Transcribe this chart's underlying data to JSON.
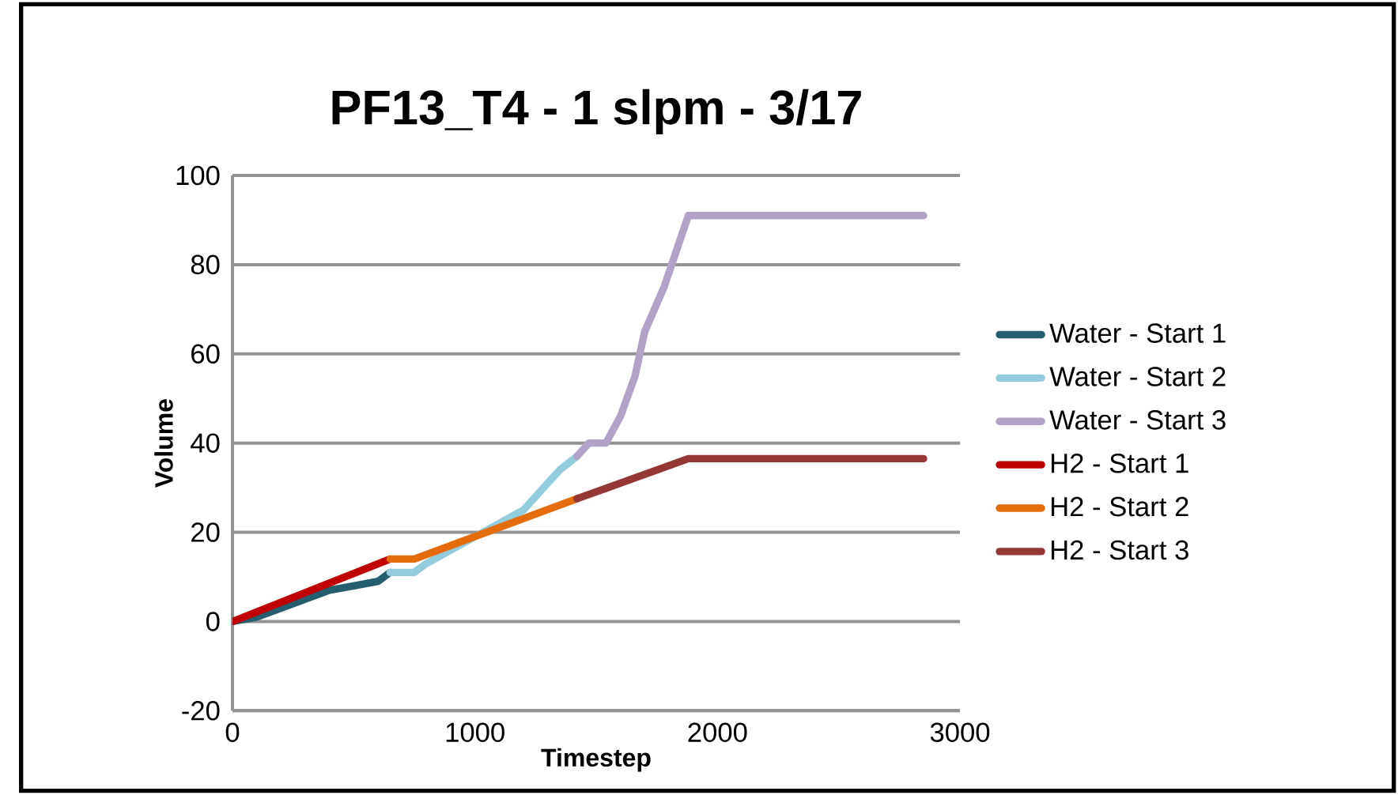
{
  "chart_data": {
    "type": "line",
    "title": "PF13_T4 - 1 slpm - 3/17",
    "xlabel": "Timestep",
    "ylabel": "Volume",
    "xlim": [
      0,
      3000
    ],
    "xticks": [
      0,
      1000,
      2000,
      3000
    ],
    "ylim": [
      -20,
      100
    ],
    "yticks": [
      -20,
      0,
      20,
      40,
      60,
      80,
      100
    ],
    "grid": "y",
    "legend": "right",
    "marker": "none",
    "line_style": "solid",
    "series": [
      {
        "name": "Water - Start 1",
        "color": "#255e6e",
        "x": [
          0,
          100,
          200,
          300,
          400,
          500,
          600,
          650
        ],
        "values": [
          0,
          1,
          3,
          5,
          7,
          8,
          9,
          11
        ]
      },
      {
        "name": "Water - Start 2",
        "color": "#93cddd",
        "x": [
          650,
          750,
          800,
          900,
          1000,
          1100,
          1200,
          1300,
          1350,
          1420
        ],
        "values": [
          11,
          11,
          13,
          16,
          19,
          22,
          25,
          31,
          34,
          37
        ]
      },
      {
        "name": "Water - Start 3",
        "color": "#b3a2c7",
        "x": [
          1420,
          1470,
          1540,
          1600,
          1660,
          1700,
          1780,
          1880,
          2850
        ],
        "values": [
          37,
          40,
          40,
          46,
          55,
          65,
          75,
          91,
          91
        ]
      },
      {
        "name": "H2 - Start 1",
        "color": "#c00000",
        "x": [
          0,
          650
        ],
        "values": [
          0,
          14
        ]
      },
      {
        "name": "H2 - Start 2",
        "color": "#e46c0a",
        "x": [
          650,
          750,
          1420
        ],
        "values": [
          14,
          14,
          27.5
        ]
      },
      {
        "name": "H2 - Start 3",
        "color": "#953735",
        "x": [
          1420,
          1880,
          2850
        ],
        "values": [
          27.5,
          36.5,
          36.5
        ]
      }
    ]
  }
}
